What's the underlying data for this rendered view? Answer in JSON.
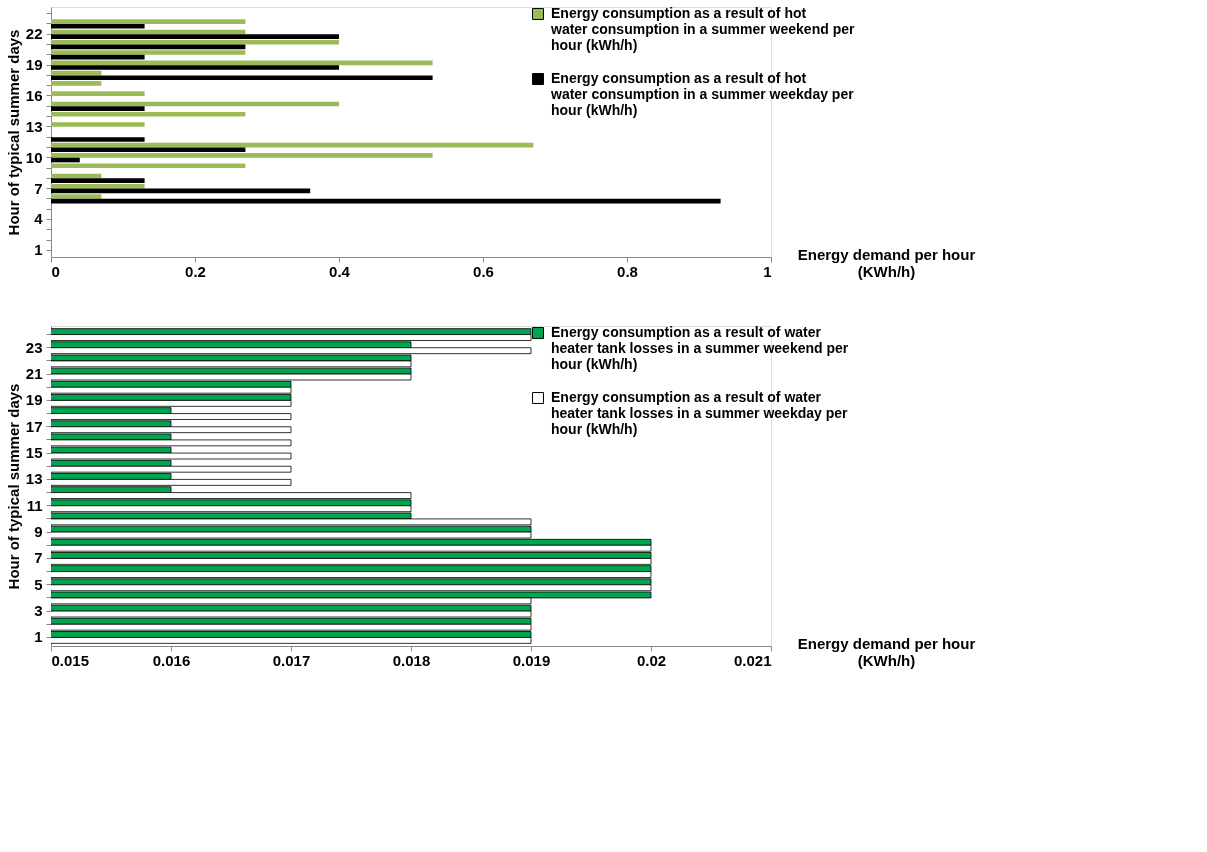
{
  "chart_data": [
    {
      "type": "bar",
      "orientation": "horizontal",
      "ylabel": "Hour of typical summer days",
      "xlabel": "Energy demand per hour (KWh/h)",
      "categories": [
        null,
        null,
        "22",
        null,
        null,
        "19",
        null,
        null,
        "16",
        null,
        null,
        "13",
        null,
        null,
        "10",
        null,
        null,
        "7",
        null,
        null,
        "4",
        null,
        null,
        "1"
      ],
      "series": [
        {
          "name": "Energy consumption as a result of hot water consumption in a summer weekend per hour (kWh/h)",
          "color": "#9bbb59",
          "values": [
            0,
            0.27,
            0.27,
            0.4,
            0.27,
            0.53,
            0.07,
            0.07,
            0.13,
            0.4,
            0.27,
            0.13,
            0,
            0.67,
            0.53,
            0.27,
            0.07,
            0.13,
            0.07,
            0,
            0,
            0,
            0,
            0
          ]
        },
        {
          "name": "Energy consumption as a result of hot water consumption in a summer weekday per hour (kWh/h)",
          "color": "#000000",
          "values": [
            0,
            0.13,
            0.4,
            0.27,
            0.13,
            0.4,
            0.53,
            0,
            0,
            0.13,
            0,
            0,
            0.13,
            0.27,
            0.04,
            0,
            0.13,
            0.36,
            0.93,
            0,
            0,
            0,
            0,
            0
          ]
        }
      ],
      "xlim": [
        0,
        1
      ],
      "xticks": [
        0,
        0.2,
        0.4,
        0.6,
        0.8,
        1
      ],
      "grid": false,
      "legend": "top right"
    },
    {
      "type": "bar",
      "orientation": "horizontal",
      "ylabel": "Hour of typical summer days",
      "xlabel": "Energy demand per hour (KWh/h)",
      "categories": [
        null,
        "23",
        null,
        "21",
        null,
        "19",
        null,
        "17",
        null,
        "15",
        null,
        "13",
        null,
        "11",
        null,
        "9",
        null,
        "7",
        null,
        "5",
        null,
        "3",
        null,
        "1"
      ],
      "series": [
        {
          "name": "Energy consumption as a result of water heater tank losses in a summer weekend per hour (kWh/h)",
          "color": "#00a550",
          "values": [
            0.019,
            0.018,
            0.018,
            0.018,
            0.017,
            0.017,
            0.016,
            0.016,
            0.016,
            0.016,
            0.016,
            0.016,
            0.016,
            0.018,
            0.018,
            0.019,
            0.02,
            0.02,
            0.02,
            0.02,
            0.02,
            0.019,
            0.019,
            0.019
          ]
        },
        {
          "name": "Energy consumption as a result of  water heater tank losses in a summer weekday per hour (kWh/h)",
          "color": "#ffffff",
          "values": [
            0.019,
            0.019,
            0.018,
            0.018,
            0.017,
            0.017,
            0.017,
            0.017,
            0.017,
            0.017,
            0.017,
            0.017,
            0.018,
            0.018,
            0.019,
            0.019,
            0.02,
            0.02,
            0.02,
            0.02,
            0.019,
            0.019,
            0.019,
            0.019
          ]
        }
      ],
      "xlim": [
        0.015,
        0.021
      ],
      "xticks": [
        0.015,
        0.016,
        0.017,
        0.018,
        0.019,
        0.02,
        0.021
      ],
      "grid": false,
      "legend": "top right"
    }
  ]
}
